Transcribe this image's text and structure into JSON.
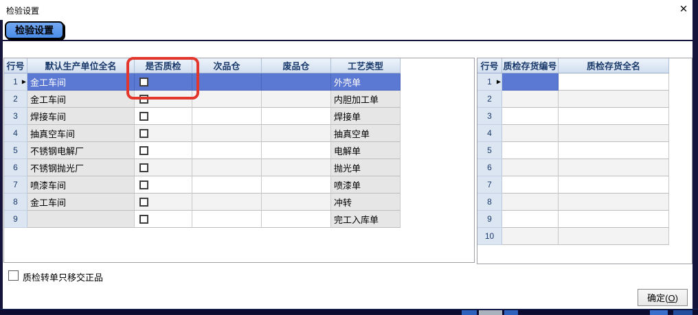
{
  "window": {
    "title": "检验设置",
    "close_icon": "✕"
  },
  "toolbar": {
    "settings_button": "检验设置"
  },
  "left_grid": {
    "headers": [
      "行号",
      "默认生产单位全名",
      "是否质检",
      "次品仓",
      "废品仓",
      "工艺类型"
    ],
    "rows": [
      {
        "num": "1",
        "unit": "金工车间",
        "checked": false,
        "defect": "",
        "scrap": "",
        "process": "外壳单",
        "selected": true
      },
      {
        "num": "2",
        "unit": "金工车间",
        "checked": false,
        "defect": "",
        "scrap": "",
        "process": "内胆加工单",
        "selected": false
      },
      {
        "num": "3",
        "unit": "焊接车间",
        "checked": false,
        "defect": "",
        "scrap": "",
        "process": "焊接单",
        "selected": false
      },
      {
        "num": "4",
        "unit": "抽真空车间",
        "checked": false,
        "defect": "",
        "scrap": "",
        "process": "抽真空单",
        "selected": false
      },
      {
        "num": "5",
        "unit": "不锈钢电解厂",
        "checked": false,
        "defect": "",
        "scrap": "",
        "process": "电解单",
        "selected": false
      },
      {
        "num": "6",
        "unit": "不锈钢抛光厂",
        "checked": false,
        "defect": "",
        "scrap": "",
        "process": "抛光单",
        "selected": false
      },
      {
        "num": "7",
        "unit": "喷漆车间",
        "checked": false,
        "defect": "",
        "scrap": "",
        "process": "喷漆单",
        "selected": false
      },
      {
        "num": "8",
        "unit": "金工车间",
        "checked": false,
        "defect": "",
        "scrap": "",
        "process": "冲转",
        "selected": false
      },
      {
        "num": "9",
        "unit": "",
        "checked": false,
        "defect": "",
        "scrap": "",
        "process": "完工入库单",
        "selected": false
      }
    ]
  },
  "right_grid": {
    "headers": [
      "行号",
      "质检存货编号",
      "质检存货全名"
    ],
    "rows": [
      {
        "num": "1",
        "code": "",
        "name": "",
        "selected": true
      },
      {
        "num": "2",
        "code": "",
        "name": "",
        "selected": false
      },
      {
        "num": "3",
        "code": "",
        "name": "",
        "selected": false
      },
      {
        "num": "4",
        "code": "",
        "name": "",
        "selected": false
      },
      {
        "num": "5",
        "code": "",
        "name": "",
        "selected": false
      },
      {
        "num": "6",
        "code": "",
        "name": "",
        "selected": false
      },
      {
        "num": "7",
        "code": "",
        "name": "",
        "selected": false
      },
      {
        "num": "8",
        "code": "",
        "name": "",
        "selected": false
      },
      {
        "num": "9",
        "code": "",
        "name": "",
        "selected": false
      },
      {
        "num": "10",
        "code": "",
        "name": "",
        "selected": false
      }
    ]
  },
  "footer": {
    "transfer_checkbox_label": "质检转单只移交正品",
    "transfer_checkbox_checked": false,
    "ok_prefix": "确定(",
    "ok_mnemonic": "O",
    "ok_suffix": ")"
  },
  "colors": {
    "selection_blue": "#5b78d2",
    "header_text_navy": "#1a3a6b",
    "highlight_red": "#e3362c",
    "toolbar_button_blue": "#4a8ce6",
    "backdrop_navy": "#14143c"
  },
  "annotations": {
    "highlighted_column": "是否质检"
  }
}
